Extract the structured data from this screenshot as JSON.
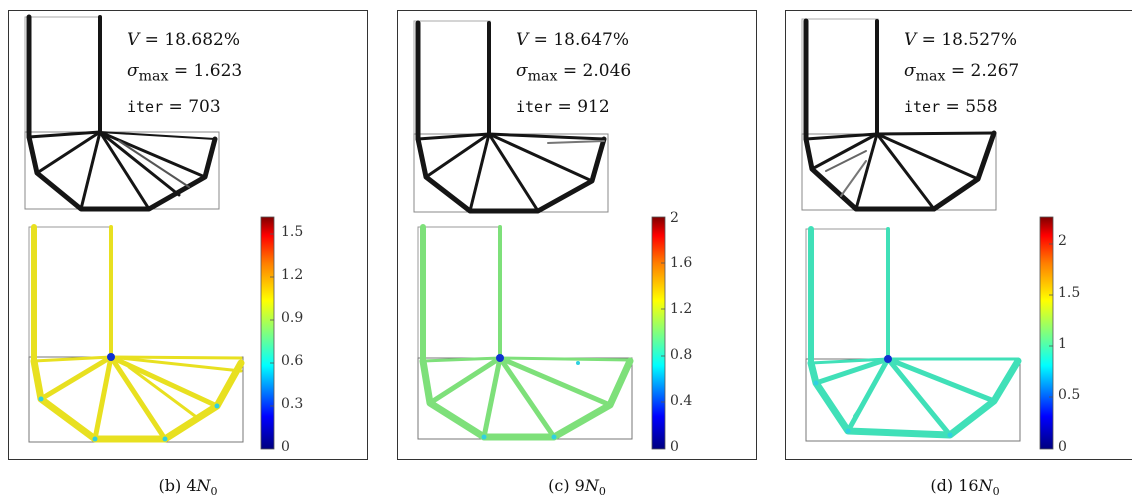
{
  "panels": [
    {
      "id": "b",
      "stats": {
        "v_label": "V",
        "v_value": "18.682%",
        "sigma_label": "σ",
        "sigma_sub": "max",
        "sigma_value": "1.623",
        "iter_label": "iter",
        "iter_value": "703"
      },
      "colorbar_ticks": [
        "1.5",
        "1.2",
        "0.9",
        "0.6",
        "0.3",
        "0"
      ],
      "caption": {
        "letter": "(b)",
        "coef": "4",
        "symbol": "N",
        "sub": "0"
      }
    },
    {
      "id": "c",
      "stats": {
        "v_label": "V",
        "v_value": "18.647%",
        "sigma_label": "σ",
        "sigma_sub": "max",
        "sigma_value": "2.046",
        "iter_label": "iter",
        "iter_value": "912"
      },
      "colorbar_ticks": [
        "2",
        "1.6",
        "1.2",
        "0.8",
        "0.4",
        "0"
      ],
      "caption": {
        "letter": "(c)",
        "coef": "9",
        "symbol": "N",
        "sub": "0"
      }
    },
    {
      "id": "d",
      "stats": {
        "v_label": "V",
        "v_value": "18.527%",
        "sigma_label": "σ",
        "sigma_sub": "max",
        "sigma_value": "2.267",
        "iter_label": "iter",
        "iter_value": "558"
      },
      "colorbar_ticks": [
        "2",
        "1.5",
        "1",
        "0.5",
        "0"
      ],
      "caption": {
        "letter": "(d)",
        "coef": "16",
        "symbol": "N",
        "sub": "0"
      }
    }
  ],
  "colors": {
    "structure": "#151515",
    "panel_b_stress": "#e8e020",
    "panel_c_stress": "#7ee07a",
    "panel_d_stress": "#40e0b8",
    "low_stress": "#1030d0"
  },
  "colorbar_gradient": [
    "#00007f",
    "#0000ff",
    "#00ffff",
    "#7fff7f",
    "#ffff00",
    "#ff7f00",
    "#ff0000",
    "#7f0000"
  ]
}
